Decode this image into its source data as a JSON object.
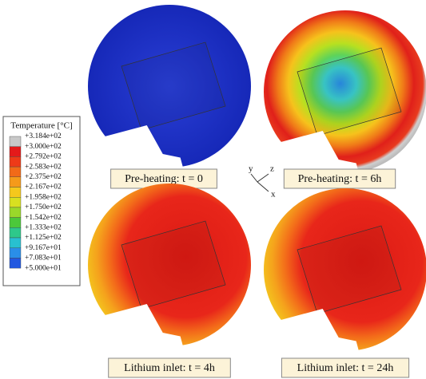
{
  "legend": {
    "title": "Temperature [°C]",
    "labels": [
      "+3.184e+02",
      "+3.000e+02",
      "+2.792e+02",
      "+2.583e+02",
      "+2.375e+02",
      "+2.167e+02",
      "+1.958e+02",
      "+1.750e+02",
      "+1.542e+02",
      "+1.333e+02",
      "+1.125e+02",
      "+9.167e+01",
      "+7.083e+01",
      "+5.000e+01"
    ]
  },
  "panels": [
    {
      "caption": "Pre-heating: t = 0"
    },
    {
      "caption": "Pre-heating: t = 6h"
    },
    {
      "caption": "Lithium inlet: t = 4h"
    },
    {
      "caption": "Lithium inlet: t = 24h"
    }
  ],
  "triad": {
    "x": "x",
    "y": "y",
    "z": "z"
  }
}
